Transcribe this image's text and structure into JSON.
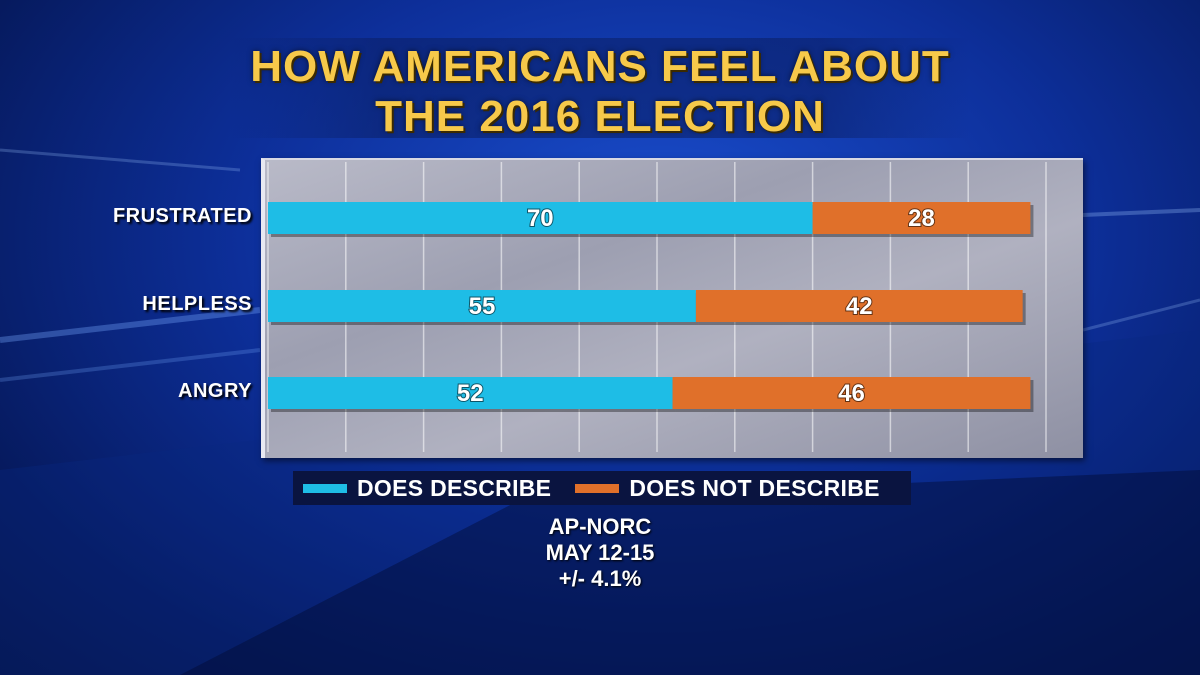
{
  "title_line1": "HOW AMERICANS FEEL ABOUT",
  "title_line2": "THE 2016 ELECTION",
  "source_line1": "AP-NORC",
  "source_line2": "MAY 12-15",
  "source_line3": "+/- 4.1%",
  "colors": {
    "describe": "#1ebde6",
    "not_describe": "#e0702a",
    "title": "#f7c94a"
  },
  "chart_data": {
    "type": "bar",
    "orientation": "horizontal",
    "stacked": true,
    "categories": [
      "FRUSTRATED",
      "HELPLESS",
      "ANGRY"
    ],
    "series": [
      {
        "name": "DOES DESCRIBE",
        "values": [
          70,
          55,
          52
        ]
      },
      {
        "name": "DOES NOT DESCRIBE",
        "values": [
          28,
          42,
          46
        ]
      }
    ],
    "xlim": [
      0,
      100
    ],
    "grid": true,
    "legend": "bottom"
  }
}
